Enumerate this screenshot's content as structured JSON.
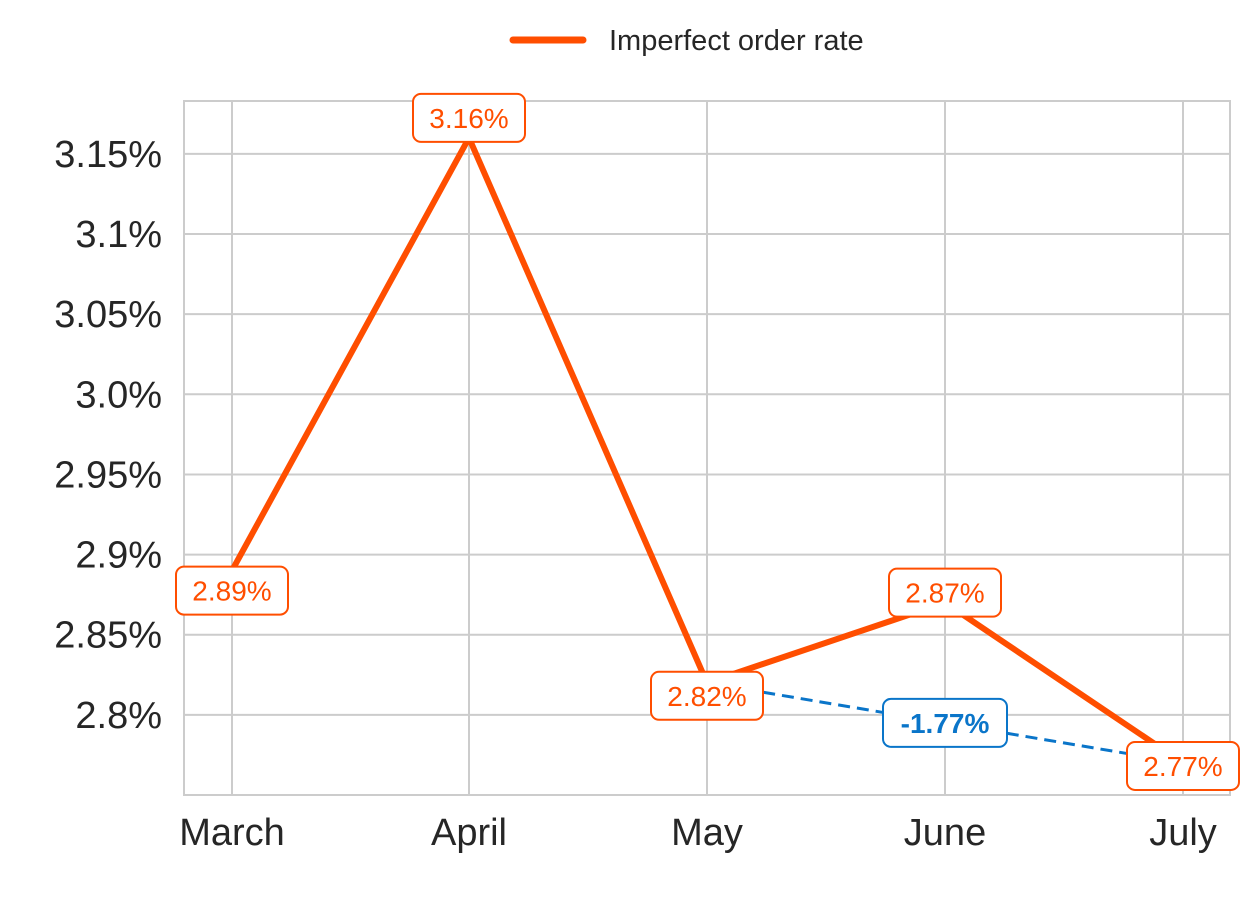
{
  "chart_data": {
    "type": "line",
    "categories": [
      "March",
      "April",
      "May",
      "June",
      "July"
    ],
    "series": [
      {
        "name": "Imperfect order rate",
        "values": [
          2.89,
          3.16,
          2.82,
          2.87,
          2.77
        ],
        "labels": [
          "2.89%",
          "3.16%",
          "2.82%",
          "2.87%",
          "2.77%"
        ],
        "color": "#FF4E00"
      }
    ],
    "annotation": {
      "type": "change",
      "from_category": "May",
      "to_category": "July",
      "label": "-1.77%",
      "color": "#0A75C9"
    },
    "y_ticks": [
      2.8,
      2.85,
      2.9,
      2.95,
      3.0,
      3.05,
      3.1,
      3.15
    ],
    "y_tick_labels": [
      "2.8%",
      "2.85%",
      "2.9%",
      "2.95%",
      "3.0%",
      "3.05%",
      "3.1%",
      "3.15%"
    ],
    "ylim": [
      2.75,
      3.183
    ],
    "grid": true,
    "legend_position": "top-center",
    "title": "",
    "xlabel": "",
    "ylabel": ""
  },
  "colors": {
    "series": "#FF4E00",
    "annotation": "#0A75C9",
    "grid": "#CCCCCC",
    "text": "#262626"
  }
}
